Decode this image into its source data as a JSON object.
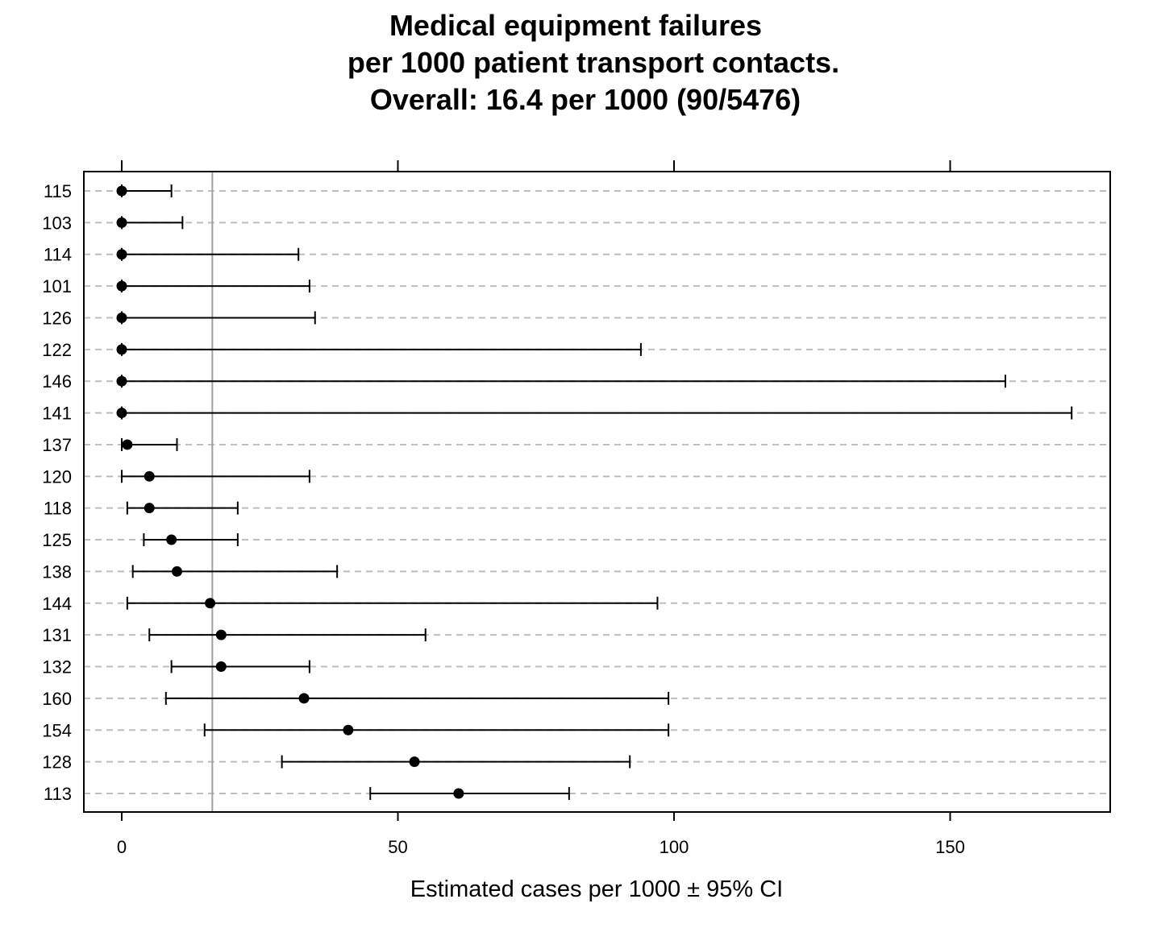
{
  "chart_data": {
    "type": "dot-interval",
    "title_lines": [
      "Medical equipment failures",
      "per 1000 patient transport contacts.",
      "Overall:  16.4 per 1000  (90/5476)"
    ],
    "xlabel": "Estimated cases per 1000 ±  95% CI",
    "xlim": [
      -7,
      179
    ],
    "x_ticks": [
      0,
      50,
      100,
      150
    ],
    "x_tick_labels": [
      "0",
      "50",
      "100",
      "150"
    ],
    "reference_line": 16.4,
    "grid": "dashed horizontal",
    "categories": [
      "115",
      "103",
      "114",
      "101",
      "126",
      "122",
      "146",
      "141",
      "137",
      "120",
      "118",
      "125",
      "138",
      "144",
      "131",
      "132",
      "160",
      "154",
      "128",
      "113"
    ],
    "estimates": [
      0,
      0,
      0,
      0,
      0,
      0,
      0,
      0,
      1,
      5,
      5,
      9,
      10,
      16,
      18,
      18,
      33,
      41,
      53,
      61
    ],
    "lower": [
      0,
      0,
      0,
      0,
      0,
      0,
      0,
      0,
      0,
      0,
      1,
      4,
      2,
      1,
      5,
      9,
      8,
      15,
      29,
      45
    ],
    "upper": [
      9,
      11,
      32,
      34,
      35,
      94,
      160,
      172,
      10,
      34,
      21,
      21,
      39,
      97,
      55,
      34,
      99,
      99,
      92,
      81
    ]
  },
  "colors": {
    "points": "#000000",
    "intervals": "#000000",
    "grid": "#bebebe",
    "reference": "#a0a0a0",
    "frame": "#000000"
  }
}
